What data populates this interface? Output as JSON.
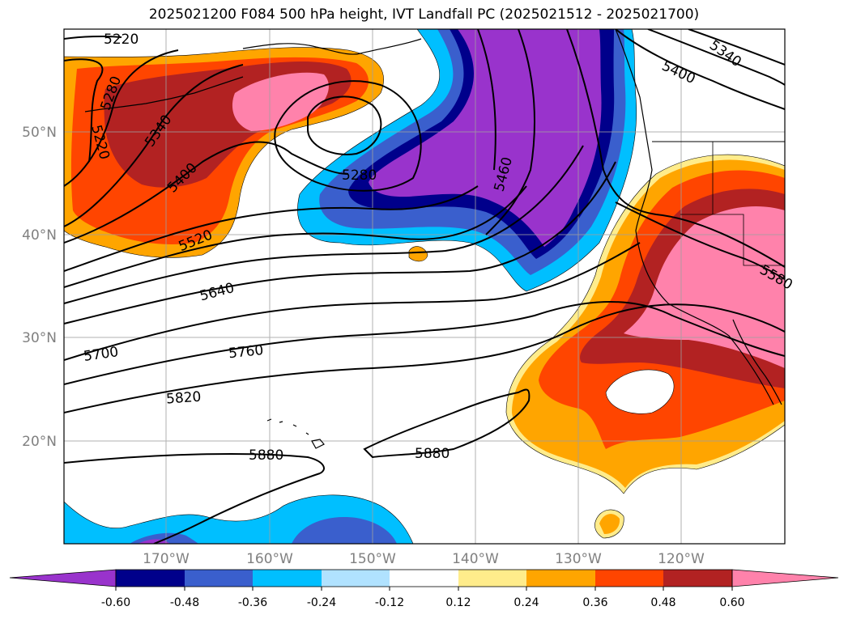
{
  "title": "2025021200 F084 500 hPa height, IVT Landfall PC (2025021512 - 2025021700)",
  "map": {
    "longitude_labels": [
      "170°W",
      "160°W",
      "150°W",
      "140°W",
      "130°W",
      "120°W"
    ],
    "latitude_labels": [
      "50°N",
      "40°N",
      "30°N",
      "20°N"
    ],
    "height_contour_labels": [
      "5220",
      "5220",
      "5280",
      "5340",
      "5400",
      "5520",
      "5640",
      "5700",
      "5760",
      "5820",
      "5880",
      "5880",
      "5280",
      "5460",
      "5400",
      "5340",
      "5580"
    ]
  },
  "colorbar": {
    "tick_labels": [
      "-0.60",
      "-0.48",
      "-0.36",
      "-0.24",
      "-0.12",
      "0.12",
      "0.24",
      "0.36",
      "0.48",
      "0.60"
    ],
    "colors": [
      "#9933cc",
      "#00008b",
      "#3a5fcd",
      "#00bfff",
      "#b0e2ff",
      "#ffffff",
      "#ffec8b",
      "#ffa500",
      "#ff4500",
      "#b22222",
      "#ff82ab"
    ]
  }
}
